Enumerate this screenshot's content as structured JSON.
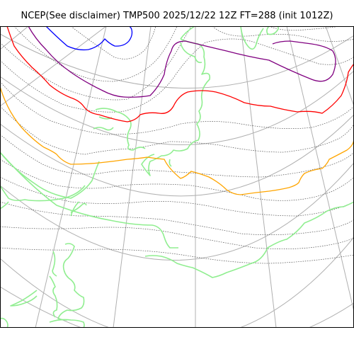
{
  "title": "NCEP(See disclaimer) TMP500 2025/12/22 12Z FT=288 (init 1012Z)",
  "colors": {
    "background": "#ffffff",
    "frame": "#000000",
    "graticule": "#b0b0b0",
    "isotherm_thin": "#555555",
    "coastline": "#90ee90",
    "contour_blue": "#0000ff",
    "contour_purple": "#800080",
    "contour_red": "#ff0000",
    "contour_orange": "#ffa500"
  },
  "map": {
    "field": "TMP500",
    "projection": "polar-stereographic",
    "highlighted_isotherms": [
      {
        "name": "blue-isotherm",
        "color": "#0000ff"
      },
      {
        "name": "purple-isotherm",
        "color": "#800080"
      },
      {
        "name": "red-isotherm",
        "color": "#ff0000"
      },
      {
        "name": "orange-isotherm",
        "color": "#ffa500"
      }
    ]
  }
}
